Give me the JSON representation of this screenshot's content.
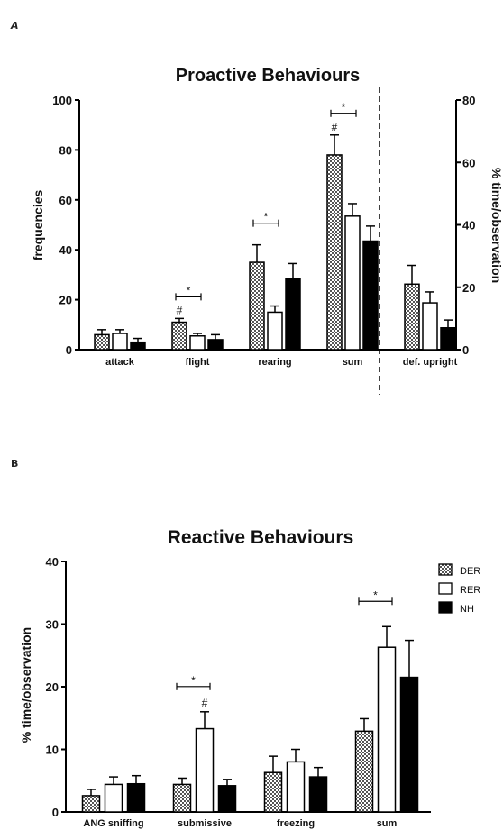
{
  "panels": {
    "a_label": "A",
    "b_label": "B"
  },
  "legend": {
    "items": [
      {
        "name": "DER",
        "pattern": "checker"
      },
      {
        "name": "RER",
        "pattern": "white"
      },
      {
        "name": "NH",
        "pattern": "black"
      }
    ]
  },
  "chart_data": [
    {
      "type": "bar",
      "title": "Proactive Behaviours",
      "ylabel": "frequencies",
      "ylabel_right": "% time/observation",
      "ylim": [
        0,
        100
      ],
      "ylim_right": [
        0,
        80
      ],
      "yticks": [
        "0",
        "20",
        "40",
        "60",
        "80",
        "100"
      ],
      "yticks_right": [
        "0",
        "20",
        "40",
        "60",
        "80"
      ],
      "categories": [
        "attack",
        "flight",
        "rearing",
        "sum",
        "def. upright"
      ],
      "right_axis_categories": [
        "def. upright"
      ],
      "series": [
        {
          "name": "DER",
          "values": [
            6,
            11,
            35,
            78,
            21
          ],
          "errors": [
            2,
            1.5,
            7,
            8,
            6
          ]
        },
        {
          "name": "RER",
          "values": [
            6.5,
            5.5,
            15,
            53.5,
            15
          ],
          "errors": [
            1.5,
            1,
            2.5,
            5,
            3.5
          ]
        },
        {
          "name": "NH",
          "values": [
            3,
            4,
            28.5,
            43.5,
            7
          ],
          "errors": [
            1.5,
            2,
            6,
            6,
            2.5
          ]
        }
      ],
      "annotations": [
        {
          "type": "sig_bracket",
          "category": "flight",
          "label": "*"
        },
        {
          "type": "sig_bracket",
          "category": "rearing",
          "label": "*"
        },
        {
          "type": "sig_bracket",
          "category": "sum",
          "label": "*"
        },
        {
          "type": "hash",
          "category": "flight",
          "series": "DER",
          "label": "#"
        },
        {
          "type": "hash",
          "category": "sum",
          "series": "DER",
          "label": "#"
        }
      ]
    },
    {
      "type": "bar",
      "title": "Reactive Behaviours",
      "ylabel": "% time/observation",
      "ylim": [
        0,
        40
      ],
      "yticks": [
        "0",
        "10",
        "20",
        "30",
        "40"
      ],
      "categories": [
        "ANG sniffing",
        "submissive",
        "freezing",
        "sum"
      ],
      "series": [
        {
          "name": "DER",
          "values": [
            2.6,
            4.4,
            6.3,
            12.9
          ],
          "errors": [
            1,
            1,
            2.6,
            2
          ]
        },
        {
          "name": "RER",
          "values": [
            4.4,
            13.3,
            8,
            26.3
          ],
          "errors": [
            1.2,
            2.7,
            2,
            3.3
          ]
        },
        {
          "name": "NH",
          "values": [
            4.5,
            4.2,
            5.6,
            21.5
          ],
          "errors": [
            1.3,
            1,
            1.5,
            5.9
          ]
        }
      ],
      "annotations": [
        {
          "type": "sig_bracket",
          "category": "submissive",
          "label": "*"
        },
        {
          "type": "sig_bracket",
          "category": "sum",
          "label": "*"
        },
        {
          "type": "hash",
          "category": "submissive",
          "series": "RER",
          "label": "#"
        }
      ]
    }
  ]
}
